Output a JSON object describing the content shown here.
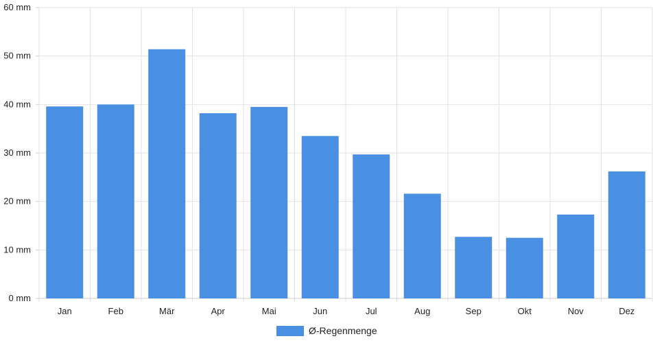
{
  "chart_data": {
    "type": "bar",
    "categories": [
      "Jan",
      "Feb",
      "Mär",
      "Apr",
      "Mai",
      "Jun",
      "Jul",
      "Aug",
      "Sep",
      "Okt",
      "Nov",
      "Dez"
    ],
    "series": [
      {
        "name": "Ø-Regenmenge",
        "values": [
          39.6,
          40.0,
          51.4,
          38.2,
          39.5,
          33.5,
          29.7,
          21.6,
          12.7,
          12.5,
          17.3,
          26.2
        ],
        "color": "#4a90e2"
      }
    ],
    "y_unit": "mm",
    "y_ticks": [
      "0 mm",
      "10 mm",
      "20 mm",
      "30 mm",
      "40 mm",
      "50 mm",
      "60 mm"
    ],
    "ylim": [
      0,
      60
    ],
    "grid": true,
    "legend_position": "bottom",
    "title": "",
    "xlabel": "",
    "ylabel": ""
  }
}
